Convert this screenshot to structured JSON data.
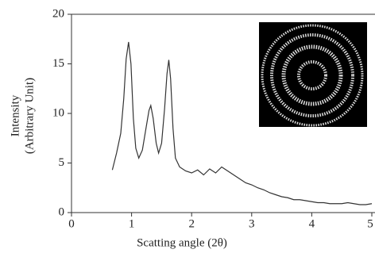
{
  "chart_data": {
    "type": "line",
    "x_label": "Scatting angle (2θ)",
    "y_label": [
      "Intensity",
      "(Arbitrary Unit)"
    ],
    "xlim": [
      0,
      5
    ],
    "xticks": [
      0,
      1,
      2,
      3,
      4,
      5
    ],
    "ylim": [
      0,
      20
    ],
    "yticks": [
      0,
      5,
      10,
      15,
      20
    ],
    "series": [
      {
        "color": "#333333",
        "x": [
          0.68,
          0.75,
          0.82,
          0.87,
          0.91,
          0.95,
          0.99,
          1.03,
          1.07,
          1.12,
          1.18,
          1.24,
          1.29,
          1.32,
          1.36,
          1.41,
          1.45,
          1.5,
          1.55,
          1.59,
          1.62,
          1.65,
          1.69,
          1.73,
          1.8,
          1.9,
          2.0,
          2.1,
          2.2,
          2.3,
          2.4,
          2.5,
          2.6,
          2.7,
          2.8,
          2.9,
          3.0,
          3.1,
          3.2,
          3.3,
          3.4,
          3.5,
          3.6,
          3.7,
          3.8,
          3.9,
          4.0,
          4.1,
          4.2,
          4.3,
          4.4,
          4.5,
          4.6,
          4.7,
          4.8,
          4.9,
          5.0
        ],
        "values": [
          4.3,
          6.0,
          8.0,
          11.5,
          15.5,
          17.2,
          15.0,
          9.5,
          6.5,
          5.5,
          6.3,
          8.5,
          10.3,
          10.8,
          9.5,
          7.0,
          6.0,
          7.0,
          10.5,
          14.0,
          15.4,
          13.5,
          8.5,
          5.5,
          4.6,
          4.2,
          4.0,
          4.3,
          3.8,
          4.4,
          4.0,
          4.6,
          4.2,
          3.8,
          3.4,
          3.0,
          2.8,
          2.5,
          2.3,
          2.0,
          1.8,
          1.6,
          1.5,
          1.3,
          1.3,
          1.2,
          1.1,
          1.0,
          1.0,
          0.9,
          0.9,
          0.9,
          1.0,
          0.9,
          0.8,
          0.8,
          0.9
        ]
      }
    ]
  }
}
